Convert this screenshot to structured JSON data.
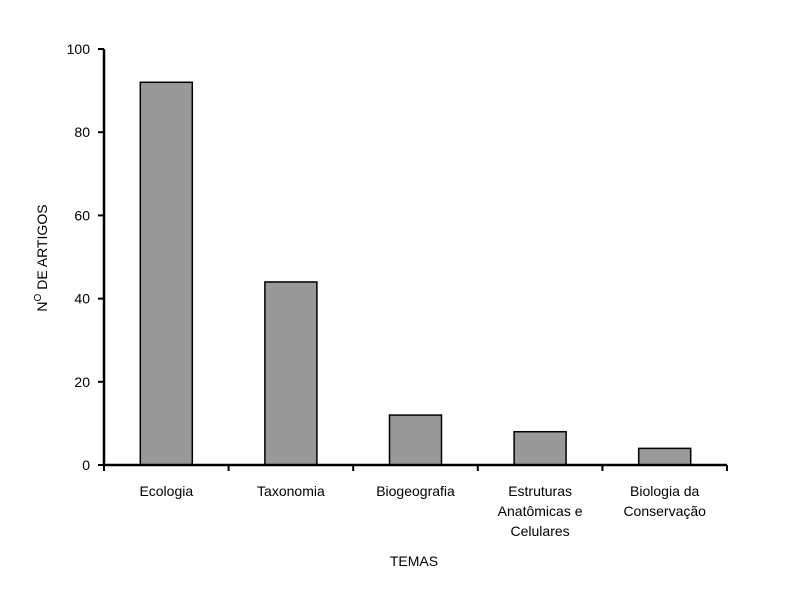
{
  "chart_data": {
    "type": "bar",
    "title": "",
    "xlabel": "TEMAS",
    "ylabel_main": "N",
    "ylabel_sup": "O",
    "ylabel_rest": " DE ARTIGOS",
    "ylabel": "Nº DE ARTIGOS",
    "categories": [
      [
        "Ecologia"
      ],
      [
        "Taxonomia"
      ],
      [
        "Biogeografia"
      ],
      [
        "Estruturas",
        "Anatômicas e",
        "Celulares"
      ],
      [
        "Biologia da",
        "Conservação"
      ]
    ],
    "values": [
      92,
      44,
      12,
      8,
      4
    ],
    "ylim": [
      0,
      100
    ],
    "yticks": [
      0,
      20,
      40,
      60,
      80,
      100
    ],
    "grid": false,
    "bar_color": "#999999"
  }
}
